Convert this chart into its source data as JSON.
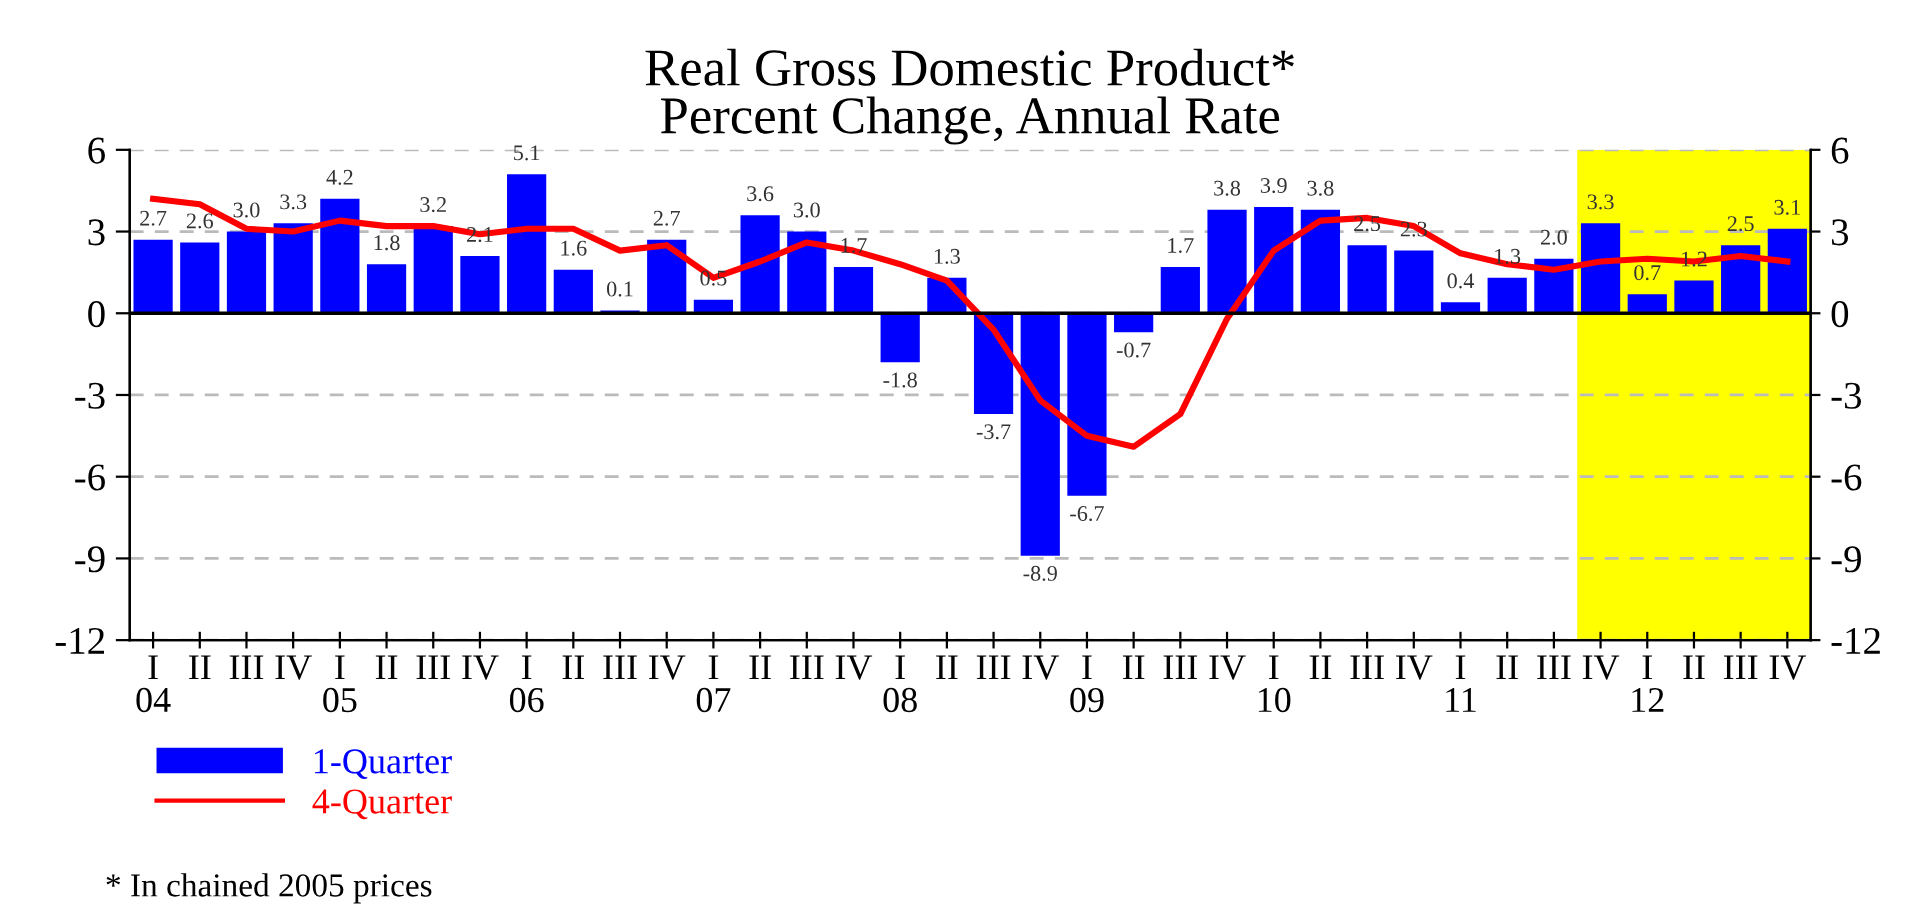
{
  "chart_data": {
    "type": "bar",
    "title": "Real Gross Domestic Product*\nPercent Change, Annual Rate",
    "categories": [
      "I\n04",
      "II",
      "III",
      "IV",
      "I\n05",
      "II",
      "III",
      "IV",
      "I\n06",
      "II",
      "III",
      "IV",
      "I\n07",
      "II",
      "III",
      "IV",
      "I\n08",
      "II",
      "III",
      "IV",
      "I\n09",
      "II",
      "III",
      "IV",
      "I\n10",
      "II",
      "III",
      "IV",
      "I\n11",
      "II",
      "III",
      "IV",
      "I\n12",
      "II",
      "III",
      "IV"
    ],
    "series": [
      {
        "name": "1-Quarter",
        "color": "#0000ff",
        "values": [
          2.7,
          2.6,
          3.0,
          3.3,
          4.2,
          1.8,
          3.2,
          2.1,
          5.1,
          1.6,
          0.1,
          2.7,
          0.5,
          3.6,
          3.0,
          1.7,
          -1.8,
          1.3,
          -3.7,
          -8.9,
          -6.7,
          -0.7,
          1.7,
          3.8,
          3.9,
          3.8,
          2.5,
          2.3,
          0.4,
          1.3,
          2.0,
          3.3,
          0.7,
          1.2,
          2.5,
          3.1
        ],
        "value_labels": [
          "2.7",
          "2.6",
          "3.0",
          "3.3",
          "4.2",
          "1.8",
          "3.2",
          "2.1",
          "5.1",
          "1.6",
          "0.1",
          "2.7",
          "0.5",
          "3.6",
          "3.0",
          "1.7",
          "-1.8",
          "1.3",
          "-3.7",
          "-8.9",
          "-6.7",
          "-0.7",
          "1.7",
          "3.8",
          "3.9",
          "3.8",
          "2.5",
          "2.3",
          "0.4",
          "1.3",
          "2.0",
          "3.3",
          "0.7",
          "1.2",
          "2.5",
          "3.1"
        ]
      },
      {
        "name": "4-Quarter",
        "type": "line",
        "color": "#ff0000",
        "values": [
          4.2,
          4.0,
          3.1,
          3.0,
          3.4,
          3.2,
          3.2,
          2.9,
          3.1,
          3.1,
          2.3,
          2.5,
          1.3,
          1.9,
          2.6,
          2.3,
          1.8,
          1.2,
          -0.6,
          -3.2,
          -4.5,
          -4.9,
          -3.7,
          -0.2,
          2.3,
          3.4,
          3.5,
          3.2,
          2.2,
          1.8,
          1.6,
          1.9,
          2.0,
          1.9,
          2.1,
          1.9
        ]
      }
    ],
    "ylim": [
      -12,
      6
    ],
    "yticks": [
      -12,
      -9,
      -6,
      -3,
      0,
      3,
      6
    ],
    "y2lim": [
      -12,
      6
    ],
    "y2ticks": [
      -12,
      -9,
      -6,
      -3,
      0,
      3,
      6
    ],
    "grid": "y",
    "legend": "bottom left",
    "annotations": [
      "* In chained 2005 prices"
    ]
  }
}
